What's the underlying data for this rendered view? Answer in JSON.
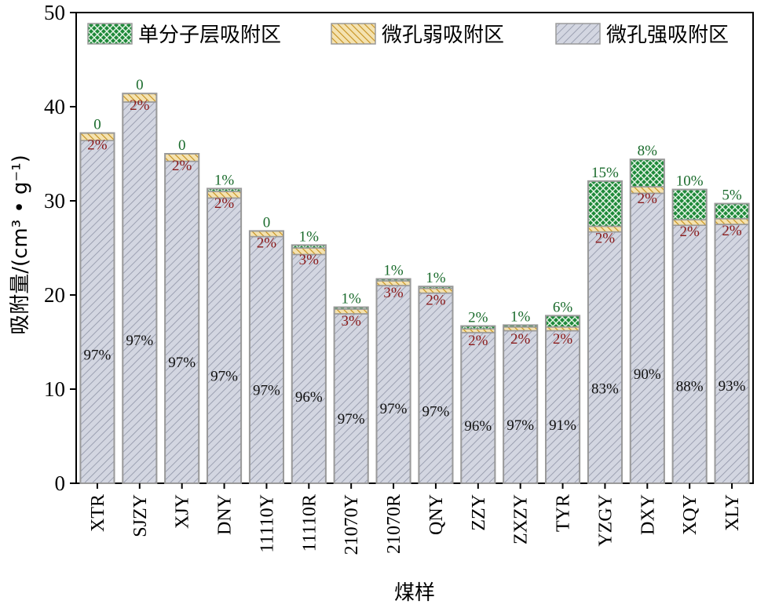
{
  "chart_data": {
    "type": "bar",
    "stacked": true,
    "xlabel": "煤样",
    "ylabel": "吸附量/(cm³ • g⁻¹)",
    "ylim": [
      0,
      50
    ],
    "yticks": [
      0,
      10,
      20,
      30,
      40,
      50
    ],
    "legend_position": "top-right",
    "categories": [
      "XTR",
      "SJZY",
      "XJY",
      "DNY",
      "11110Y",
      "11110R",
      "21070Y",
      "21070R",
      "QNY",
      "ZZY",
      "ZXZY",
      "TYR",
      "YZGY",
      "DXY",
      "XQY",
      "XLY"
    ],
    "series": [
      {
        "name": "微孔强吸附区",
        "color": "#cfd3df",
        "pattern": "diagonal-hatch",
        "values": [
          36.4,
          40.5,
          34.2,
          30.3,
          26.2,
          24.3,
          18.0,
          21.0,
          20.2,
          16.0,
          16.2,
          16.2,
          26.7,
          30.8,
          27.4,
          27.5
        ],
        "labels": [
          "97%",
          "97%",
          "97%",
          "97%",
          "97%",
          "96%",
          "97%",
          "97%",
          "97%",
          "96%",
          "97%",
          "91%",
          "83%",
          "90%",
          "88%",
          "93%"
        ]
      },
      {
        "name": "微孔弱吸附区",
        "color": "#e3b63e",
        "pattern": "diagonal-hatch",
        "values": [
          0.8,
          0.9,
          0.8,
          0.7,
          0.6,
          0.7,
          0.5,
          0.5,
          0.5,
          0.4,
          0.4,
          0.4,
          0.6,
          0.7,
          0.6,
          0.6
        ],
        "labels": [
          "2%",
          "2%",
          "2%",
          "2%",
          "2%",
          "3%",
          "3%",
          "3%",
          "2%",
          "2%",
          "2%",
          "2%",
          "2%",
          "2%",
          "2%",
          "2%"
        ]
      },
      {
        "name": "单分子层吸附区",
        "color": "#1f8a3a",
        "pattern": "crosshatch",
        "values": [
          0.0,
          0.0,
          0.0,
          0.3,
          0.0,
          0.3,
          0.2,
          0.2,
          0.2,
          0.3,
          0.2,
          1.2,
          4.8,
          2.9,
          3.2,
          1.6
        ],
        "labels": [
          "0",
          "0",
          "0",
          "1%",
          "0",
          "1%",
          "1%",
          "1%",
          "1%",
          "2%",
          "1%",
          "6%",
          "15%",
          "8%",
          "10%",
          "5%"
        ]
      }
    ]
  }
}
